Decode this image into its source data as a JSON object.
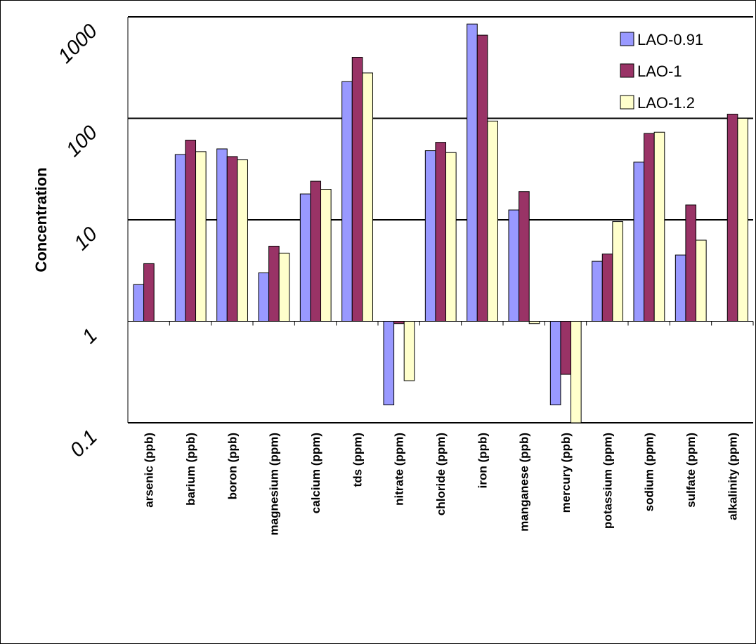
{
  "chart_data": {
    "type": "bar",
    "title": "",
    "xlabel": "",
    "ylabel": "Concentration",
    "yscale": "log",
    "ylim": [
      0.1,
      1000
    ],
    "y_ticks": [
      "0.1",
      "1",
      "10",
      "100",
      "1000"
    ],
    "baseline": 1,
    "grid": "major horizontal lines at 10, 100, 1000",
    "legend_position": "top-right",
    "categories": [
      "arsenic (ppb)",
      "barium (ppb)",
      "boron (ppb)",
      "magnesium (ppm)",
      "calcium (ppm)",
      "tds (ppm)",
      "nitrate (ppm)",
      "chloride (ppm)",
      "iron (ppb)",
      "manganese (ppb)",
      "mercury (ppb)",
      "potassium (ppm)",
      "sodium (ppm)",
      "sulfate (ppm)",
      "alkalinity (ppm)"
    ],
    "series": [
      {
        "name": "LAO-0.91",
        "color": "#9999ff",
        "values": [
          2.3,
          44,
          50,
          3.0,
          18,
          230,
          0.15,
          48,
          850,
          12.5,
          0.15,
          3.9,
          37,
          4.5,
          null
        ]
      },
      {
        "name": "LAO-1",
        "color": "#993366",
        "values": [
          3.7,
          61,
          42,
          5.5,
          24,
          400,
          0.95,
          58,
          660,
          19,
          0.3,
          4.6,
          71,
          14,
          110
        ]
      },
      {
        "name": "LAO-1.2",
        "color": "#ffffcc",
        "values": [
          null,
          47,
          39,
          4.7,
          20,
          280,
          0.26,
          46,
          94,
          0.95,
          0.1,
          9.6,
          73,
          6.3,
          100
        ]
      }
    ]
  }
}
